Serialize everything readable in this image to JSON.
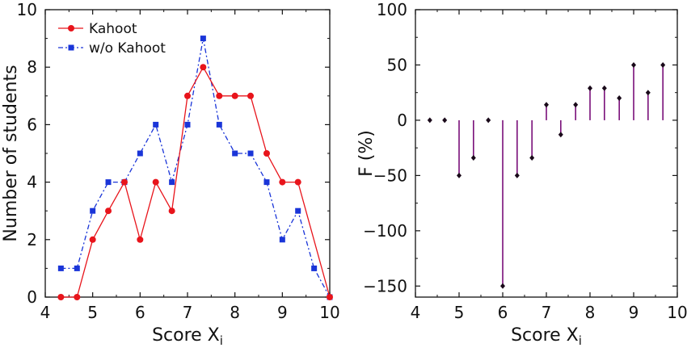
{
  "chart_data": [
    {
      "type": "line",
      "xlabel_main": "Score X",
      "xlabel_sub": "i",
      "ylabel": "Number of students",
      "xlim": [
        4,
        10
      ],
      "ylim": [
        0,
        10
      ],
      "xticks": [
        4,
        5,
        6,
        7,
        8,
        9,
        10
      ],
      "yticks": [
        0,
        2,
        4,
        6,
        8,
        10
      ],
      "legend_position": "top-left",
      "grid": false,
      "series": [
        {
          "name": "Kahoot",
          "color": "#e8141b",
          "marker": "circle",
          "line_style": "solid",
          "x": [
            4.33,
            4.67,
            5.0,
            5.33,
            5.67,
            6.0,
            6.33,
            6.67,
            7.0,
            7.33,
            7.67,
            8.0,
            8.33,
            8.67,
            9.0,
            9.33,
            10.0
          ],
          "y": [
            0,
            0,
            2,
            3,
            4,
            2,
            4,
            3,
            7,
            8,
            7,
            7,
            7,
            5,
            4,
            4,
            0
          ]
        },
        {
          "name": "w/o Kahoot",
          "color": "#1a35d8",
          "marker": "square",
          "line_style": "dash-dot",
          "x": [
            4.33,
            4.67,
            5.0,
            5.33,
            5.67,
            6.0,
            6.33,
            6.67,
            7.0,
            7.33,
            7.67,
            8.0,
            8.33,
            8.67,
            9.0,
            9.33,
            9.67,
            10.0
          ],
          "y": [
            1,
            1,
            3,
            4,
            4,
            5,
            6,
            4,
            6,
            9,
            6,
            5,
            5,
            4,
            2,
            3,
            1,
            0
          ]
        }
      ]
    },
    {
      "type": "scatter",
      "style": "stem",
      "xlabel_main": "Score X",
      "xlabel_sub": "i",
      "ylabel": "F (%)",
      "xlim": [
        4,
        10
      ],
      "ylim": [
        -160,
        100
      ],
      "xticks": [
        4,
        5,
        6,
        7,
        8,
        9,
        10
      ],
      "yticks": [
        -150,
        -100,
        -50,
        0,
        50,
        100
      ],
      "grid": false,
      "color": "#7a0f7a",
      "marker_color": "#1a0a1a",
      "x": [
        4.33,
        4.67,
        5.0,
        5.33,
        5.67,
        6.0,
        6.33,
        6.67,
        7.0,
        7.33,
        7.67,
        8.0,
        8.33,
        8.67,
        9.0,
        9.33,
        9.67
      ],
      "y": [
        0,
        0,
        -50,
        -34,
        0,
        -150,
        -50,
        -34,
        14,
        -13,
        14,
        29,
        29,
        20,
        50,
        25,
        50
      ]
    }
  ]
}
